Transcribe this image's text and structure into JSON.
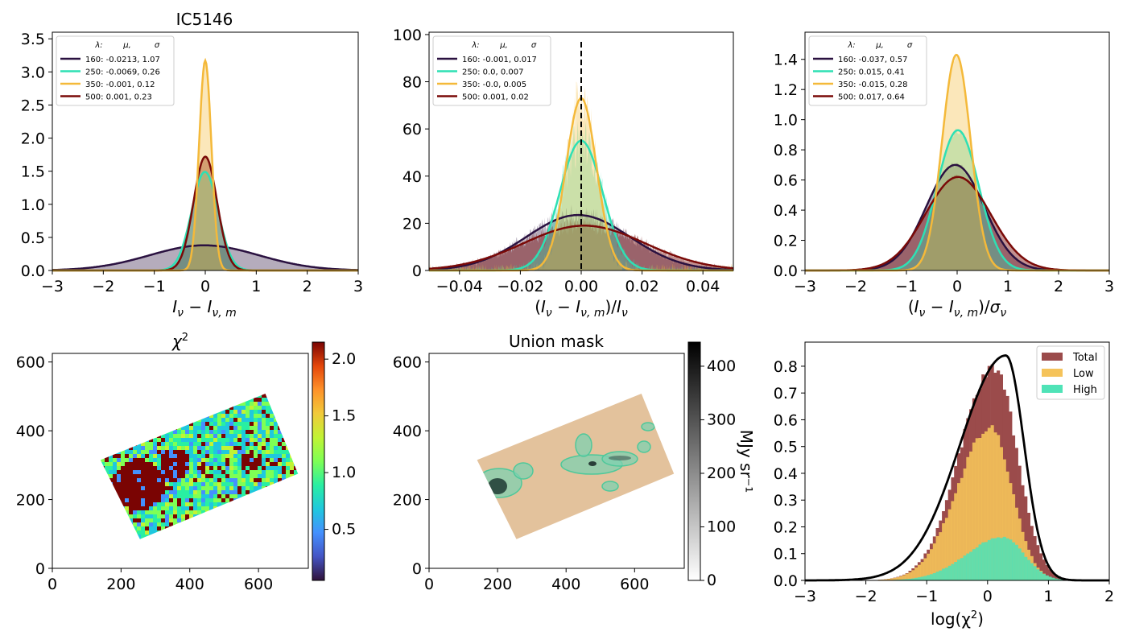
{
  "colors": {
    "c160": "#2a1140",
    "c250": "#2ee0b4",
    "c350": "#f4b93a",
    "c500": "#7a0a08",
    "hist_total": "#9b4b4b",
    "hist_low": "#f5c35a",
    "hist_high": "#4fe3b7",
    "mask_fill": "#e3c29c"
  },
  "chart_data": [
    {
      "id": "p1",
      "type": "line",
      "title": "IC5146",
      "xlabel": "Iν − Iν,m",
      "xlim": [
        -3,
        3
      ],
      "ylim": [
        0,
        3.6
      ],
      "xticks": [
        -3,
        -2,
        -1,
        0,
        1,
        2,
        3
      ],
      "xtick_labels": [
        "−3",
        "−2",
        "−1",
        "0",
        "1",
        "2",
        "3"
      ],
      "yticks": [
        0,
        0.5,
        1.0,
        1.5,
        2.0,
        2.5,
        3.0,
        3.5
      ],
      "ytick_labels": [
        "0.0",
        "0.5",
        "1.0",
        "1.5",
        "2.0",
        "2.5",
        "3.0",
        "3.5"
      ],
      "legend_header": [
        "λ:",
        "μ,",
        "σ"
      ],
      "series": [
        {
          "name": "160: -0.0213,  1.07",
          "mu": -0.0213,
          "sigma": 1.07,
          "amp": 0.38,
          "color": "#2a1140"
        },
        {
          "name": "250: -0.0069,  0.26",
          "mu": -0.0069,
          "sigma": 0.26,
          "amp": 1.49,
          "color": "#2ee0b4"
        },
        {
          "name": "350: -0.001,  0.12",
          "mu": -0.001,
          "sigma": 0.12,
          "amp": 3.17,
          "color": "#f4b93a"
        },
        {
          "name": "500: 0.001,  0.23",
          "mu": 0.001,
          "sigma": 0.23,
          "amp": 1.72,
          "color": "#7a0a08"
        }
      ]
    },
    {
      "id": "p2",
      "type": "line",
      "title": "",
      "xlabel": "(Iν − Iν,m)/Iν",
      "xlim": [
        -0.05,
        0.05
      ],
      "ylim": [
        0,
        101
      ],
      "xticks": [
        -0.04,
        -0.02,
        0.0,
        0.02,
        0.04
      ],
      "xtick_labels": [
        "−0.04",
        "−0.02",
        "0.00",
        "0.02",
        "0.04"
      ],
      "yticks": [
        0,
        20,
        40,
        60,
        80,
        100
      ],
      "ytick_labels": [
        "0",
        "20",
        "40",
        "60",
        "80",
        "100"
      ],
      "vline_x": 0,
      "legend_header": [
        "λ:",
        "μ,",
        "σ"
      ],
      "series": [
        {
          "name": "160: -0.001,  0.017",
          "mu": -0.001,
          "sigma": 0.017,
          "amp": 23.5,
          "color": "#2a1140"
        },
        {
          "name": "250: 0.0,  0.007",
          "mu": 0.0,
          "sigma": 0.007,
          "amp": 55,
          "color": "#2ee0b4"
        },
        {
          "name": "350: -0.0,  0.005",
          "mu": 0.0,
          "sigma": 0.005,
          "amp": 73,
          "color": "#f4b93a"
        },
        {
          "name": "500: 0.001,  0.02",
          "mu": 0.001,
          "sigma": 0.02,
          "amp": 19,
          "color": "#7a0a08"
        }
      ]
    },
    {
      "id": "p3",
      "type": "line",
      "title": "",
      "xlabel": "(Iν − Iν,m)/σν",
      "xlim": [
        -3,
        3
      ],
      "ylim": [
        0,
        1.58
      ],
      "xticks": [
        -3,
        -2,
        -1,
        0,
        1,
        2,
        3
      ],
      "xtick_labels": [
        "−3",
        "−2",
        "−1",
        "0",
        "1",
        "2",
        "3"
      ],
      "yticks": [
        0,
        0.2,
        0.4,
        0.6,
        0.8,
        1.0,
        1.2,
        1.4
      ],
      "ytick_labels": [
        "0.0",
        "0.2",
        "0.4",
        "0.6",
        "0.8",
        "1.0",
        "1.2",
        "1.4"
      ],
      "legend_header": [
        "λ:",
        "μ,",
        "σ"
      ],
      "series": [
        {
          "name": "160: -0.037,  0.57",
          "mu": -0.037,
          "sigma": 0.57,
          "amp": 0.7,
          "color": "#2a1140"
        },
        {
          "name": "250: 0.015,  0.41",
          "mu": 0.015,
          "sigma": 0.41,
          "amp": 0.93,
          "color": "#2ee0b4"
        },
        {
          "name": "350: -0.015,  0.28",
          "mu": -0.015,
          "sigma": 0.28,
          "amp": 1.43,
          "color": "#f4b93a"
        },
        {
          "name": "500: 0.017,  0.64",
          "mu": 0.017,
          "sigma": 0.64,
          "amp": 0.62,
          "color": "#7a0a08"
        }
      ]
    },
    {
      "id": "p4",
      "type": "heatmap",
      "title": "χ²",
      "xlim": [
        0,
        745
      ],
      "ylim": [
        0,
        625
      ],
      "xticks": [
        0,
        200,
        400,
        600
      ],
      "yticks": [
        0,
        200,
        400,
        600
      ],
      "colorbar_range": [
        0.05,
        2.15
      ],
      "colorbar_ticks": [
        0.5,
        1.0,
        1.5,
        2.0
      ],
      "colorbar_tick_labels": [
        "0.5",
        "1.0",
        "1.5",
        "2.0"
      ],
      "colormap": "turbo"
    },
    {
      "id": "p5",
      "type": "heatmap",
      "title": "Union mask",
      "xlim": [
        0,
        745
      ],
      "ylim": [
        0,
        625
      ],
      "xticks": [
        0,
        200,
        400,
        600
      ],
      "yticks": [
        0,
        200,
        400,
        600
      ],
      "colorbar_range": [
        0,
        445
      ],
      "colorbar_ticks": [
        0,
        100,
        200,
        300,
        400
      ],
      "colorbar_tick_labels": [
        "0",
        "100",
        "200",
        "300",
        "400"
      ],
      "colorbar_label": "MJy sr⁻¹",
      "colormap": "gray_r"
    },
    {
      "id": "p6",
      "type": "bar",
      "title": "",
      "xlabel": "log(χ²)",
      "xlim": [
        -3,
        2
      ],
      "ylim": [
        0,
        0.89
      ],
      "xticks": [
        -3,
        -2,
        -1,
        0,
        1,
        2
      ],
      "xtick_labels": [
        "−3",
        "−2",
        "−1",
        "0",
        "1",
        "2"
      ],
      "yticks": [
        0,
        0.1,
        0.2,
        0.3,
        0.4,
        0.5,
        0.6,
        0.7,
        0.8
      ],
      "ytick_labels": [
        "0.0",
        "0.1",
        "0.2",
        "0.3",
        "0.4",
        "0.5",
        "0.6",
        "0.7",
        "0.8"
      ],
      "legend": [
        "Total",
        "Low",
        "High"
      ],
      "histograms": {
        "total": {
          "peak_x": 0.1,
          "peak": 0.8,
          "sigma_left": 0.55,
          "sigma_right": 0.38
        },
        "low": {
          "peak_x": 0.05,
          "peak": 0.57,
          "sigma_left": 0.55,
          "sigma_right": 0.35
        },
        "high": {
          "peak_x": 0.25,
          "peak": 0.16,
          "sigma_left": 0.6,
          "sigma_right": 0.35
        }
      },
      "curve": {
        "peak_x": 0.3,
        "peak": 0.84,
        "sigma_left": 0.75,
        "sigma_right": 0.3
      }
    }
  ]
}
